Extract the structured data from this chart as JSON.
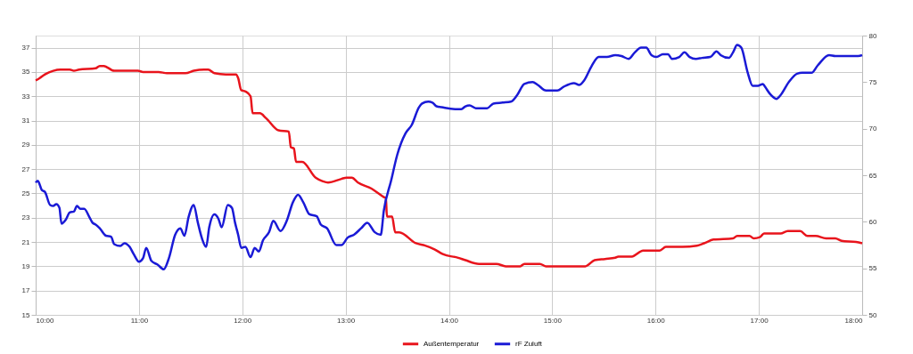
{
  "chart_data": {
    "type": "line",
    "xlim": [
      10,
      18
    ],
    "xticks": [
      {
        "value": 10,
        "label": "10:00"
      },
      {
        "value": 11,
        "label": "11:00"
      },
      {
        "value": 12,
        "label": "12:00"
      },
      {
        "value": 13,
        "label": "13:00"
      },
      {
        "value": 14,
        "label": "14:00"
      },
      {
        "value": 15,
        "label": "15:00"
      },
      {
        "value": 16,
        "label": "16:00"
      },
      {
        "value": 17,
        "label": "17:00"
      },
      {
        "value": 18,
        "label": "18:00"
      }
    ],
    "ylim": [
      15,
      38
    ],
    "yticks": [
      15,
      17,
      19,
      21,
      23,
      25,
      27,
      29,
      31,
      33,
      35,
      37
    ],
    "y2lim": [
      50,
      80
    ],
    "y2ticks": [
      50,
      55,
      60,
      65,
      70,
      75,
      80
    ],
    "grid": true,
    "legend": "bottom",
    "marker": "none",
    "line_style": "solid",
    "series": [
      {
        "name": "Außentemperatur",
        "color": "#e8141c",
        "axis": "y",
        "x": [
          10.0,
          10.04,
          10.09,
          10.17,
          10.24,
          10.33,
          10.37,
          10.42,
          10.58,
          10.62,
          10.66,
          10.76,
          10.99,
          11.04,
          11.19,
          11.27,
          11.45,
          11.53,
          11.63,
          11.67,
          11.73,
          11.84,
          11.94,
          11.96,
          11.99,
          12.03,
          12.08,
          12.1,
          12.17,
          12.23,
          12.35,
          12.45,
          12.47,
          12.5,
          12.52,
          12.58,
          12.71,
          12.78,
          12.83,
          12.96,
          13.01,
          13.06,
          13.12,
          13.25,
          13.37,
          13.39,
          13.4,
          13.45,
          13.48,
          13.52,
          13.68,
          13.77,
          13.86,
          13.94,
          14.09,
          14.16,
          14.29,
          14.46,
          14.55,
          14.69,
          14.73,
          14.88,
          14.94,
          15.32,
          15.41,
          15.51,
          15.61,
          15.64,
          15.77,
          15.88,
          16.04,
          16.1,
          16.26,
          16.4,
          16.47,
          16.56,
          16.75,
          16.79,
          16.91,
          16.95,
          17.01,
          17.05,
          17.21,
          17.28,
          17.4,
          17.47,
          17.55,
          17.65,
          17.74,
          17.8,
          17.94,
          18.0
        ],
        "values": [
          34.3,
          34.5,
          34.8,
          35.1,
          35.2,
          35.2,
          35.1,
          35.2,
          35.3,
          35.5,
          35.5,
          35.1,
          35.1,
          35.0,
          35.0,
          34.9,
          34.9,
          35.1,
          35.2,
          35.2,
          34.9,
          34.8,
          34.8,
          34.5,
          33.5,
          33.4,
          33.0,
          31.6,
          31.6,
          31.2,
          30.2,
          30.1,
          28.8,
          28.7,
          27.6,
          27.6,
          26.3,
          26.0,
          25.9,
          26.2,
          26.3,
          26.3,
          25.9,
          25.4,
          24.7,
          24.6,
          23.1,
          23.1,
          21.8,
          21.8,
          20.9,
          20.7,
          20.4,
          20.0,
          19.7,
          19.5,
          19.2,
          19.2,
          19.0,
          19.0,
          19.2,
          19.2,
          19.0,
          19.0,
          19.5,
          19.6,
          19.7,
          19.8,
          19.8,
          20.3,
          20.3,
          20.6,
          20.6,
          20.7,
          20.9,
          21.2,
          21.3,
          21.5,
          21.5,
          21.3,
          21.4,
          21.7,
          21.7,
          21.9,
          21.9,
          21.5,
          21.5,
          21.3,
          21.3,
          21.1,
          21.0,
          20.9
        ]
      },
      {
        "name": "rF Zuluft",
        "color": "#1a1ad6",
        "axis": "y2",
        "x": [
          10.0,
          10.02,
          10.06,
          10.09,
          10.14,
          10.17,
          10.2,
          10.23,
          10.25,
          10.29,
          10.33,
          10.37,
          10.4,
          10.43,
          10.47,
          10.52,
          10.55,
          10.58,
          10.62,
          10.68,
          10.73,
          10.76,
          10.82,
          10.86,
          10.91,
          10.95,
          11.0,
          11.04,
          11.07,
          11.12,
          11.18,
          11.24,
          11.29,
          11.35,
          11.4,
          11.44,
          11.48,
          11.53,
          11.57,
          11.61,
          11.65,
          11.68,
          11.73,
          11.77,
          11.8,
          11.86,
          11.9,
          11.93,
          11.96,
          11.99,
          12.03,
          12.08,
          12.12,
          12.16,
          12.2,
          12.26,
          12.3,
          12.37,
          12.43,
          12.49,
          12.54,
          12.59,
          12.65,
          12.72,
          12.76,
          12.82,
          12.91,
          12.96,
          13.02,
          13.08,
          13.15,
          13.21,
          13.28,
          13.34,
          13.37,
          13.44,
          13.5,
          13.58,
          13.64,
          13.71,
          13.74,
          13.8,
          13.84,
          13.88,
          13.93,
          14.06,
          14.12,
          14.16,
          14.2,
          14.26,
          14.37,
          14.43,
          14.52,
          14.6,
          14.66,
          14.73,
          14.81,
          14.86,
          14.94,
          15.05,
          15.11,
          15.21,
          15.26,
          15.31,
          15.38,
          15.45,
          15.53,
          15.61,
          15.67,
          15.74,
          15.8,
          15.86,
          15.91,
          15.96,
          16.01,
          16.07,
          16.12,
          16.16,
          16.23,
          16.28,
          16.33,
          16.39,
          16.45,
          16.53,
          16.59,
          16.63,
          16.71,
          16.75,
          16.79,
          16.83,
          16.89,
          16.94,
          16.99,
          17.04,
          17.06,
          17.11,
          17.17,
          17.21,
          17.29,
          17.37,
          17.42,
          17.51,
          17.57,
          17.68,
          17.74,
          17.96,
          18.0
        ],
        "values": [
          64.2,
          64.4,
          63.4,
          63.2,
          61.8,
          61.7,
          61.9,
          61.5,
          59.8,
          60.2,
          61.0,
          61.1,
          61.7,
          61.4,
          61.4,
          60.5,
          59.9,
          59.7,
          59.3,
          58.5,
          58.4,
          57.6,
          57.4,
          57.7,
          57.3,
          56.5,
          55.7,
          56.1,
          57.2,
          55.8,
          55.4,
          54.9,
          56.1,
          58.6,
          59.3,
          58.5,
          60.5,
          61.8,
          59.9,
          58.2,
          57.3,
          59.4,
          60.8,
          60.3,
          59.4,
          61.8,
          61.5,
          59.9,
          58.6,
          57.2,
          57.3,
          56.2,
          57.2,
          56.8,
          58.0,
          58.9,
          60.1,
          59.0,
          60.1,
          62.1,
          62.9,
          62.1,
          60.8,
          60.6,
          59.7,
          59.3,
          57.5,
          57.5,
          58.3,
          58.6,
          59.3,
          59.9,
          58.9,
          58.6,
          61.2,
          64.4,
          67.2,
          69.5,
          70.4,
          72.3,
          72.7,
          72.9,
          72.8,
          72.4,
          72.3,
          72.1,
          72.1,
          72.4,
          72.5,
          72.2,
          72.2,
          72.7,
          72.8,
          72.9,
          73.6,
          74.8,
          75.0,
          74.7,
          74.1,
          74.1,
          74.5,
          74.9,
          74.7,
          75.2,
          76.7,
          77.7,
          77.7,
          77.9,
          77.8,
          77.5,
          78.2,
          78.7,
          78.7,
          77.9,
          77.7,
          78.0,
          78.0,
          77.5,
          77.7,
          78.2,
          77.7,
          77.5,
          77.6,
          77.7,
          78.3,
          77.9,
          77.6,
          78.2,
          79.0,
          78.7,
          76.1,
          74.6,
          74.6,
          74.8,
          74.5,
          73.7,
          73.2,
          73.6,
          75.0,
          75.9,
          76.0,
          76.0,
          76.8,
          77.9,
          77.8,
          77.8,
          77.9
        ]
      }
    ]
  }
}
